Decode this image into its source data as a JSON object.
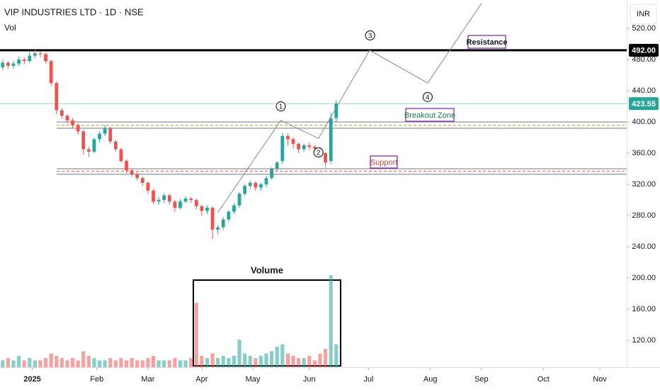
{
  "header": {
    "symbol": "VIP INDUSTRIES LTD · 1D · NSE",
    "indicator": "Vol",
    "currency": "INR"
  },
  "chart_data": {
    "type": "candlestick",
    "open": [
      470,
      476,
      472,
      475,
      480,
      478,
      485,
      488,
      487,
      478,
      450,
      415,
      408,
      402,
      396,
      388,
      365,
      362,
      378,
      385,
      392,
      375,
      365,
      350,
      338,
      333,
      328,
      322,
      312,
      298,
      300,
      306,
      298,
      290,
      298,
      302,
      300,
      292,
      286,
      290,
      262,
      265,
      275,
      285,
      293,
      308,
      318,
      322,
      316,
      320,
      328,
      340,
      350,
      382,
      378,
      372,
      365,
      370,
      368,
      366,
      360,
      350,
      405
    ],
    "high": [
      480,
      478,
      478,
      484,
      483,
      490,
      493,
      491,
      489,
      480,
      452,
      418,
      410,
      405,
      398,
      390,
      368,
      380,
      388,
      396,
      394,
      377,
      367,
      352,
      340,
      336,
      330,
      324,
      314,
      304,
      309,
      308,
      300,
      301,
      305,
      304,
      302,
      294,
      293,
      292,
      268,
      278,
      287,
      296,
      310,
      320,
      325,
      324,
      322,
      331,
      342,
      350,
      386,
      385,
      380,
      374,
      372,
      373,
      370,
      368,
      362,
      412,
      428
    ],
    "low": [
      466,
      468,
      468,
      472,
      474,
      476,
      482,
      483,
      475,
      446,
      410,
      404,
      398,
      392,
      384,
      358,
      355,
      360,
      374,
      382,
      372,
      362,
      348,
      335,
      330,
      325,
      318,
      308,
      295,
      294,
      296,
      294,
      285,
      288,
      296,
      296,
      288,
      280,
      282,
      250,
      256,
      262,
      272,
      282,
      290,
      305,
      314,
      312,
      312,
      316,
      326,
      336,
      346,
      370,
      366,
      360,
      362,
      364,
      362,
      356,
      342,
      346,
      400
    ],
    "close": [
      476,
      472,
      475,
      480,
      478,
      485,
      488,
      487,
      478,
      450,
      415,
      408,
      402,
      396,
      388,
      365,
      362,
      378,
      385,
      392,
      375,
      365,
      350,
      338,
      333,
      328,
      322,
      312,
      298,
      300,
      306,
      298,
      290,
      298,
      302,
      300,
      292,
      286,
      290,
      262,
      265,
      275,
      285,
      293,
      308,
      318,
      322,
      316,
      320,
      328,
      340,
      348,
      382,
      378,
      372,
      365,
      370,
      368,
      366,
      360,
      348,
      405,
      423.55
    ],
    "volume": [
      0.3,
      0.4,
      0.3,
      0.5,
      0.3,
      0.4,
      0.3,
      0.3,
      0.4,
      0.6,
      0.5,
      0.4,
      0.3,
      0.4,
      0.3,
      0.7,
      0.5,
      0.4,
      0.3,
      0.3,
      0.4,
      0.3,
      0.4,
      0.3,
      0.4,
      0.3,
      0.3,
      0.4,
      0.5,
      0.3,
      0.3,
      0.3,
      0.4,
      0.3,
      0.3,
      0.4,
      2.8,
      0.5,
      0.4,
      0.6,
      0.4,
      0.5,
      0.4,
      0.5,
      1.2,
      0.6,
      0.5,
      0.4,
      0.5,
      0.6,
      0.7,
      0.9,
      1.0,
      0.6,
      0.5,
      0.4,
      0.4,
      0.5,
      0.3,
      0.6,
      0.8,
      4.0,
      1.0
    ],
    "up_color": "#26a69a",
    "down_color": "#ef5350",
    "xlim": [
      -0.5,
      116
    ],
    "xticks": [
      {
        "value": 5.5,
        "label": "2025"
      },
      {
        "value": 17.5,
        "label": "Feb"
      },
      {
        "value": 27,
        "label": "Mar"
      },
      {
        "value": 37,
        "label": "Apr"
      },
      {
        "value": 46.5,
        "label": "May"
      },
      {
        "value": 57,
        "label": "Jun"
      },
      {
        "value": 68,
        "label": "Jul"
      },
      {
        "value": 79.5,
        "label": "Aug"
      },
      {
        "value": 89,
        "label": "Sep"
      },
      {
        "value": 100.5,
        "label": "Oct"
      },
      {
        "value": 111,
        "label": "Nov"
      }
    ],
    "ylim": [
      85.5,
      556.4
    ],
    "yticks": [
      {
        "value": 120,
        "label": "120.00"
      },
      {
        "value": 160,
        "label": "160.00"
      },
      {
        "value": 200,
        "label": "200.00"
      },
      {
        "value": 240,
        "label": "240.00"
      },
      {
        "value": 280,
        "label": "280.00"
      },
      {
        "value": 320,
        "label": "320.00"
      },
      {
        "value": 360,
        "label": "360.00"
      },
      {
        "value": 400,
        "label": "400.00"
      },
      {
        "value": 440,
        "label": "440.00"
      },
      {
        "value": 480,
        "label": "480.00"
      },
      {
        "value": 520,
        "label": "520.00"
      }
    ],
    "volume_lim": [
      0,
      4.5
    ],
    "last_price": 423.55,
    "resistance": {
      "name": "Resistance",
      "value": 492,
      "label": "492.00"
    },
    "breakout_zone": {
      "name": "Breakout Zone",
      "values": [
        392,
        396,
        400
      ]
    },
    "support_zone": {
      "name": "Support",
      "values": [
        333,
        337,
        340
      ]
    },
    "projection": {
      "x": [
        40,
        51.7,
        58.7,
        68.2,
        79,
        89
      ],
      "values": [
        284,
        402,
        379,
        492,
        450,
        552
      ],
      "labels": [
        {
          "x": 51.7,
          "value": 420,
          "label": "1"
        },
        {
          "x": 58.7,
          "value": 361,
          "label": "2"
        },
        {
          "x": 68.3,
          "value": 511,
          "label": "3"
        },
        {
          "x": 79,
          "value": 432,
          "label": "4"
        }
      ]
    },
    "volume_box_label": "Volume"
  }
}
